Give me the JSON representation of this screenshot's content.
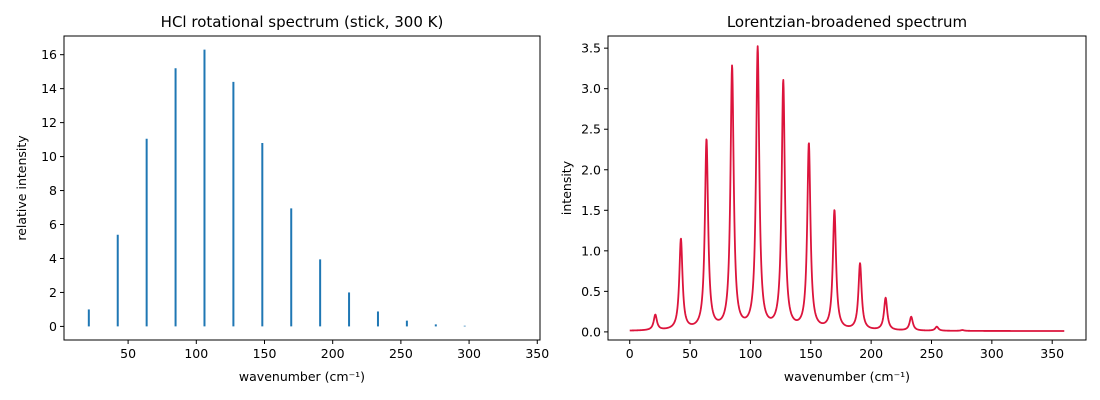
{
  "chart_data": [
    {
      "type": "bar",
      "style": "stick",
      "title": "HCl rotational spectrum (stick, 300 K)",
      "xlabel": "wavenumber (cm⁻¹)",
      "ylabel": "relative intensity",
      "xlim": [
        3,
        352
      ],
      "ylim": [
        -0.8,
        17.1
      ],
      "xticks": [
        50,
        100,
        150,
        200,
        250,
        300,
        350
      ],
      "yticks": [
        0,
        2,
        4,
        6,
        8,
        10,
        12,
        14,
        16
      ],
      "color": "#1f77b4",
      "x": [
        21.2,
        42.4,
        63.6,
        84.8,
        106.0,
        127.2,
        148.4,
        169.6,
        190.8,
        212.0,
        233.2,
        254.4,
        275.6,
        296.8
      ],
      "values": [
        1.0,
        5.4,
        11.05,
        15.2,
        16.3,
        14.4,
        10.8,
        6.95,
        3.95,
        2.0,
        0.88,
        0.34,
        0.12,
        0.04
      ]
    },
    {
      "type": "line",
      "title": "Lorentzian-broadened spectrum",
      "xlabel": "wavenumber (cm⁻¹)",
      "ylabel": "intensity",
      "xlim": [
        -18,
        378
      ],
      "ylim": [
        -0.1,
        3.65
      ],
      "xticks": [
        0,
        50,
        100,
        150,
        200,
        250,
        300,
        350
      ],
      "yticks": [
        0.0,
        0.5,
        1.0,
        1.5,
        2.0,
        2.5,
        3.0,
        3.5
      ],
      "color": "#dc143c",
      "x_range": [
        0,
        360
      ],
      "peak_x": [
        21.2,
        42.4,
        63.6,
        84.8,
        106.0,
        127.2,
        148.4,
        169.6,
        190.8,
        212.0,
        233.2,
        254.4,
        275.6,
        296.8
      ],
      "peak_y": [
        0.2,
        1.13,
        2.35,
        3.25,
        3.48,
        3.07,
        2.3,
        1.48,
        0.83,
        0.41,
        0.18,
        0.06,
        0.02,
        0.01
      ],
      "baseline": 0.01
    }
  ]
}
